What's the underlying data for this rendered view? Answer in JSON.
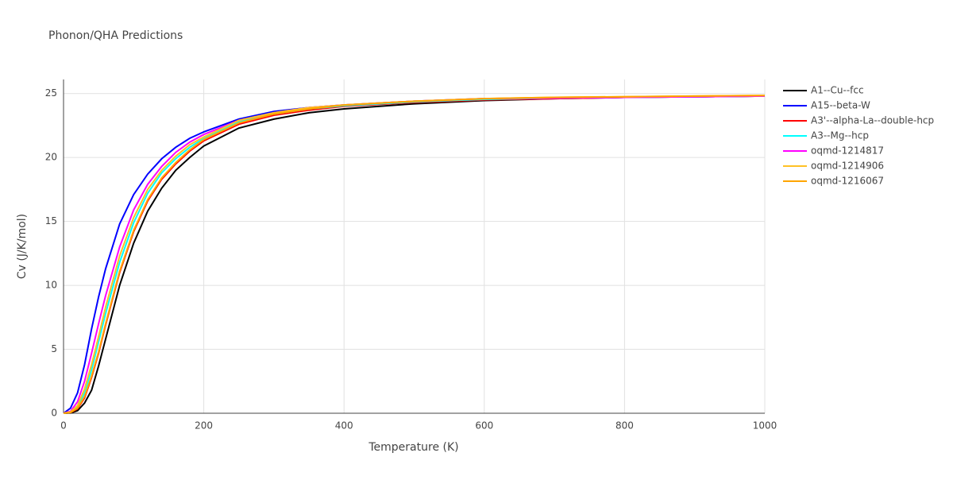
{
  "chart_data": {
    "type": "line",
    "title": "Phonon/QHA Predictions",
    "x_label": "Temperature (K)",
    "y_label": "Cv (J/K/mol)",
    "x": [
      0,
      10,
      20,
      30,
      40,
      50,
      60,
      80,
      100,
      120,
      140,
      160,
      180,
      200,
      250,
      300,
      350,
      400,
      500,
      600,
      700,
      800,
      900,
      1000
    ],
    "xlim": [
      0,
      1000
    ],
    "xticks": [
      0,
      200,
      400,
      600,
      800,
      1000
    ],
    "ylim": [
      0,
      26.1
    ],
    "yticks": [
      0,
      5,
      10,
      15,
      20,
      25
    ],
    "grid": true,
    "series": [
      {
        "name": "A1--Cu--fcc",
        "color": "#000000",
        "values": [
          0,
          0.02,
          0.2,
          0.8,
          1.8,
          3.7,
          5.8,
          10,
          13.3,
          15.8,
          17.6,
          19.0,
          20.0,
          20.9,
          22.3,
          23.0,
          23.5,
          23.8,
          24.2,
          24.45,
          24.6,
          24.7,
          24.75,
          24.8
        ]
      },
      {
        "name": "A15--beta-W",
        "color": "#0000ff",
        "values": [
          0,
          0.4,
          1.6,
          3.8,
          6.6,
          9.1,
          11.3,
          14.8,
          17.1,
          18.7,
          19.9,
          20.8,
          21.5,
          22.0,
          23.0,
          23.6,
          23.9,
          24.1,
          24.4,
          24.6,
          24.65,
          24.7,
          24.75,
          24.8
        ]
      },
      {
        "name": "A3'--alpha-La--double-hcp",
        "color": "#ff0000",
        "values": [
          0,
          0.05,
          0.35,
          1.2,
          2.8,
          4.7,
          6.9,
          11,
          14.2,
          16.6,
          18.3,
          19.5,
          20.5,
          21.3,
          22.6,
          23.3,
          23.7,
          24.0,
          24.3,
          24.5,
          24.6,
          24.7,
          24.75,
          24.8
        ]
      },
      {
        "name": "A3--Mg--hcp",
        "color": "#00ffff",
        "values": [
          0,
          0.07,
          0.5,
          1.6,
          3.4,
          5.6,
          7.8,
          11.8,
          14.9,
          17.2,
          18.8,
          19.9,
          20.8,
          21.5,
          22.8,
          23.4,
          23.8,
          24.05,
          24.35,
          24.55,
          24.65,
          24.7,
          24.75,
          24.8
        ]
      },
      {
        "name": "oqmd-1214817",
        "color": "#ff00ff",
        "values": [
          0,
          0.15,
          0.9,
          2.5,
          4.7,
          7.0,
          9.2,
          13.0,
          15.9,
          17.9,
          19.3,
          20.4,
          21.2,
          21.8,
          22.9,
          23.5,
          23.9,
          24.1,
          24.4,
          24.6,
          24.65,
          24.7,
          24.75,
          24.8
        ]
      },
      {
        "name": "oqmd-1214906",
        "color": "#ffc125",
        "values": [
          0,
          0.1,
          0.6,
          1.9,
          3.8,
          6.0,
          8.3,
          12.3,
          15.3,
          17.5,
          19.0,
          20.1,
          21.0,
          21.6,
          22.9,
          23.5,
          23.9,
          24.1,
          24.4,
          24.6,
          24.7,
          24.75,
          24.8,
          24.85
        ]
      },
      {
        "name": "oqmd-1216067",
        "color": "#ffa500",
        "values": [
          0,
          0.06,
          0.4,
          1.3,
          2.9,
          4.8,
          7.0,
          11.1,
          14.3,
          16.7,
          18.4,
          19.6,
          20.6,
          21.4,
          22.7,
          23.4,
          23.8,
          24.1,
          24.4,
          24.6,
          24.7,
          24.75,
          24.8,
          24.85
        ]
      }
    ]
  }
}
